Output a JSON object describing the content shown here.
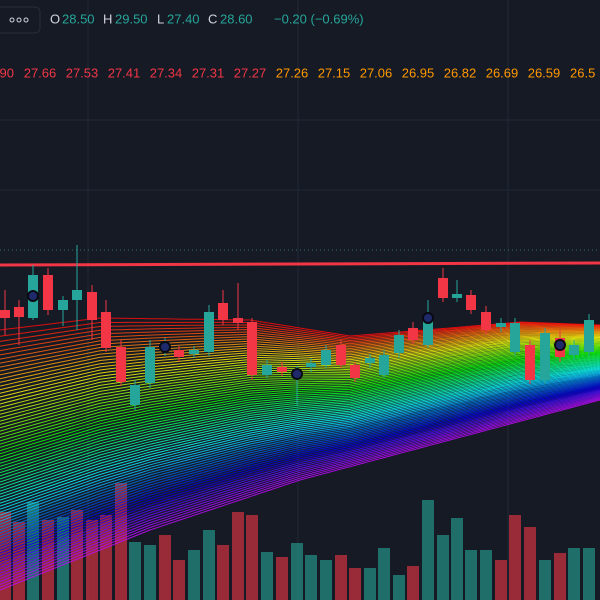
{
  "header": {
    "ohlc": [
      {
        "label": "O",
        "value": "28.50"
      },
      {
        "label": "H",
        "value": "29.50"
      },
      {
        "label": "L",
        "value": "27.40"
      },
      {
        "label": "C",
        "value": "28.60"
      }
    ],
    "change": "−0.20 (−0.69%)"
  },
  "level_labels": {
    "red": [
      "90",
      "27.66",
      "27.53",
      "27.41",
      "27.34",
      "27.31",
      "27.27"
    ],
    "orange": [
      "27.26",
      "27.15",
      "27.06",
      "26.95",
      "26.82",
      "26.69",
      "26.59",
      "26.5"
    ]
  }
}
